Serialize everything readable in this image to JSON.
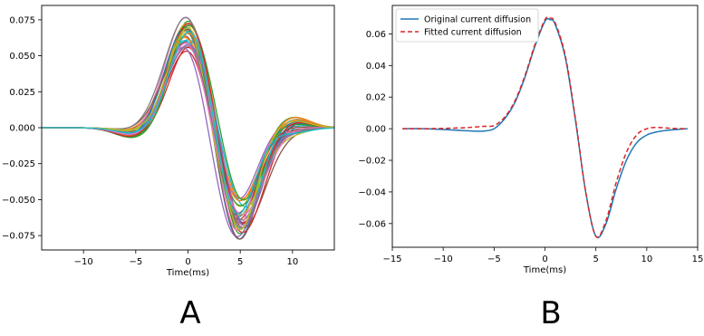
{
  "figure": {
    "panel_labels": [
      "A",
      "B"
    ]
  },
  "chart_data": [
    {
      "panel": "A",
      "type": "line",
      "title": "",
      "xlabel": "Time(ms)",
      "ylabel": "",
      "xlim": [
        -14,
        14
      ],
      "ylim": [
        -0.085,
        0.085
      ],
      "xticks": [
        -10,
        -5,
        0,
        5,
        10
      ],
      "xtick_labels": [
        "−10",
        "−5",
        "0",
        "5",
        "10"
      ],
      "yticks": [
        -0.075,
        -0.05,
        -0.025,
        0.0,
        0.025,
        0.05,
        0.075
      ],
      "ytick_labels": [
        "−0.075",
        "−0.050",
        "−0.025",
        "0.000",
        "0.025",
        "0.050",
        "0.075"
      ],
      "grid": false,
      "legend": "none",
      "series_count": 30,
      "series_shape": "biphasic pulse: peak near t = 0 ms, trough near t = 5 ms",
      "peak_value_range": [
        0.057,
        0.084
      ],
      "trough_value_range": [
        -0.08,
        -0.049
      ],
      "colors": [
        "#1f77b4",
        "#ff7f0e",
        "#2ca02c",
        "#d62728",
        "#9467bd",
        "#8c564b",
        "#e377c2",
        "#7f7f7f",
        "#bcbd22",
        "#17becf"
      ]
    },
    {
      "panel": "B",
      "type": "line",
      "title": "",
      "xlabel": "Time(ms)",
      "ylabel": "",
      "xlim": [
        -15,
        15
      ],
      "ylim": [
        -0.075,
        0.078
      ],
      "xticks": [
        -15,
        -10,
        -5,
        0,
        5,
        10,
        15
      ],
      "xtick_labels": [
        "−15",
        "−10",
        "−5",
        "0",
        "5",
        "10",
        "15"
      ],
      "yticks": [
        -0.06,
        -0.04,
        -0.02,
        0.0,
        0.02,
        0.04,
        0.06
      ],
      "ytick_labels": [
        "−0.06",
        "−0.04",
        "−0.02",
        "0.00",
        "0.02",
        "0.04",
        "0.06"
      ],
      "grid": false,
      "legend": "top-left",
      "series": [
        {
          "name": "Original current diffusion",
          "color": "#1f77b4",
          "style": "solid",
          "x": [
            -14,
            -12,
            -10,
            -8,
            -7,
            -6,
            -5,
            -4,
            -3,
            -2,
            -1,
            0,
            0.5,
            1,
            2,
            3,
            4,
            5,
            6,
            7,
            8,
            9,
            10,
            11,
            12,
            13,
            14
          ],
          "values": [
            0.0,
            0.0,
            -0.0005,
            -0.0012,
            -0.0015,
            -0.0015,
            0.0,
            0.006,
            0.016,
            0.032,
            0.052,
            0.068,
            0.069,
            0.066,
            0.045,
            0.005,
            -0.04,
            -0.068,
            -0.06,
            -0.038,
            -0.02,
            -0.009,
            -0.004,
            -0.002,
            -0.001,
            -0.0005,
            0.0
          ]
        },
        {
          "name": "Fitted current diffusion",
          "color": "#d62728",
          "style": "dashed",
          "x": [
            -14,
            -12,
            -10,
            -8,
            -7,
            -6,
            -5,
            -4,
            -3,
            -2,
            -1,
            0,
            0.5,
            1,
            2,
            3,
            4,
            5,
            6,
            7,
            8,
            9,
            10,
            11,
            12,
            13,
            14
          ],
          "values": [
            0.0,
            0.0,
            0.0002,
            0.0006,
            0.001,
            0.0015,
            0.002,
            0.007,
            0.017,
            0.033,
            0.053,
            0.069,
            0.07,
            0.067,
            0.046,
            0.006,
            -0.04,
            -0.068,
            -0.058,
            -0.034,
            -0.015,
            -0.004,
            0.0,
            0.0008,
            0.0004,
            0.0001,
            0.0
          ]
        }
      ]
    }
  ]
}
